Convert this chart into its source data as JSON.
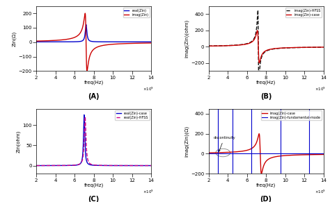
{
  "xlabel": "freq(Hz)",
  "x_scale_label": "x10^9",
  "subplots": {
    "A": {
      "title": "(A)",
      "ylabel": "Zin(Ω)",
      "ylim": [
        -200,
        250
      ],
      "legend": [
        "real(Zin)",
        "imag(Zin)"
      ],
      "colors": [
        "#0000cc",
        "#cc0000"
      ],
      "linestyles": [
        "-",
        "-"
      ]
    },
    "B": {
      "title": "(B)",
      "ylabel": "imag(Zin)(ohm)",
      "ylim": [
        -300,
        500
      ],
      "legend": [
        "imag(Zin)-HFSS",
        "imag(Zin)-case"
      ],
      "colors": [
        "#111111",
        "#cc0000"
      ],
      "linestyles": [
        "--",
        "-"
      ]
    },
    "C": {
      "title": "(C)",
      "ylabel": "Zin(ohm)",
      "ylim": [
        -20,
        140
      ],
      "legend": [
        "real(Zin)-case",
        "real(Zin)-HFSS"
      ],
      "colors": [
        "#0000cc",
        "#cc0088"
      ],
      "linestyles": [
        "-",
        "--"
      ]
    },
    "D": {
      "title": "(D)",
      "ylabel": "imag(Zin)(Ω)",
      "ylim": [
        -200,
        450
      ],
      "legend": [
        "imag(Zin)-case",
        "imag(Zin)-fundamental-mode"
      ],
      "colors": [
        "#cc0000",
        "#0000cc"
      ],
      "linestyles": [
        "-",
        "-"
      ],
      "annotation": "discontinuity",
      "spike_freqs": [
        3.0,
        4.5,
        6.5,
        9.5,
        12.5
      ]
    }
  }
}
